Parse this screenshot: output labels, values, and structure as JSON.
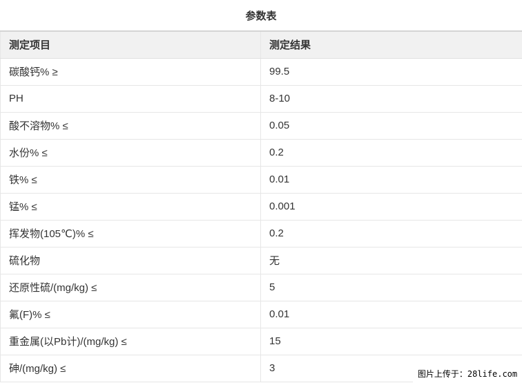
{
  "page": {
    "title": "参数表"
  },
  "colors": {
    "header_bg": "#f1f1f1",
    "table_top_border": "#d4d4d4",
    "cell_border": "#e6e6e6",
    "text": "#333333",
    "watermark_bg": "#ffffff",
    "watermark_text_color": "#000000"
  },
  "table": {
    "headers": {
      "item": "测定项目",
      "value": "测定结果"
    },
    "rows": [
      {
        "item": "碳酸钙% ≥",
        "value": "99.5"
      },
      {
        "item": "PH",
        "value": "8-10"
      },
      {
        "item": "酸不溶物% ≤",
        "value": "0.05"
      },
      {
        "item": "水份% ≤",
        "value": "0.2"
      },
      {
        "item": "铁% ≤",
        "value": "0.01"
      },
      {
        "item": "锰% ≤",
        "value": "0.001"
      },
      {
        "item": "挥发物(105℃)% ≤",
        "value": "0.2"
      },
      {
        "item": "硫化物",
        "value": "无"
      },
      {
        "item": "还原性硫/(mg/kg) ≤",
        "value": "5"
      },
      {
        "item": "氟(F)% ≤",
        "value": "0.01"
      },
      {
        "item": "重金属(以Pb计)/(mg/kg) ≤",
        "value": "15"
      },
      {
        "item": "砷/(mg/kg) ≤",
        "value": "3"
      }
    ]
  },
  "watermark": {
    "text": "图片上传于：28life.com"
  }
}
